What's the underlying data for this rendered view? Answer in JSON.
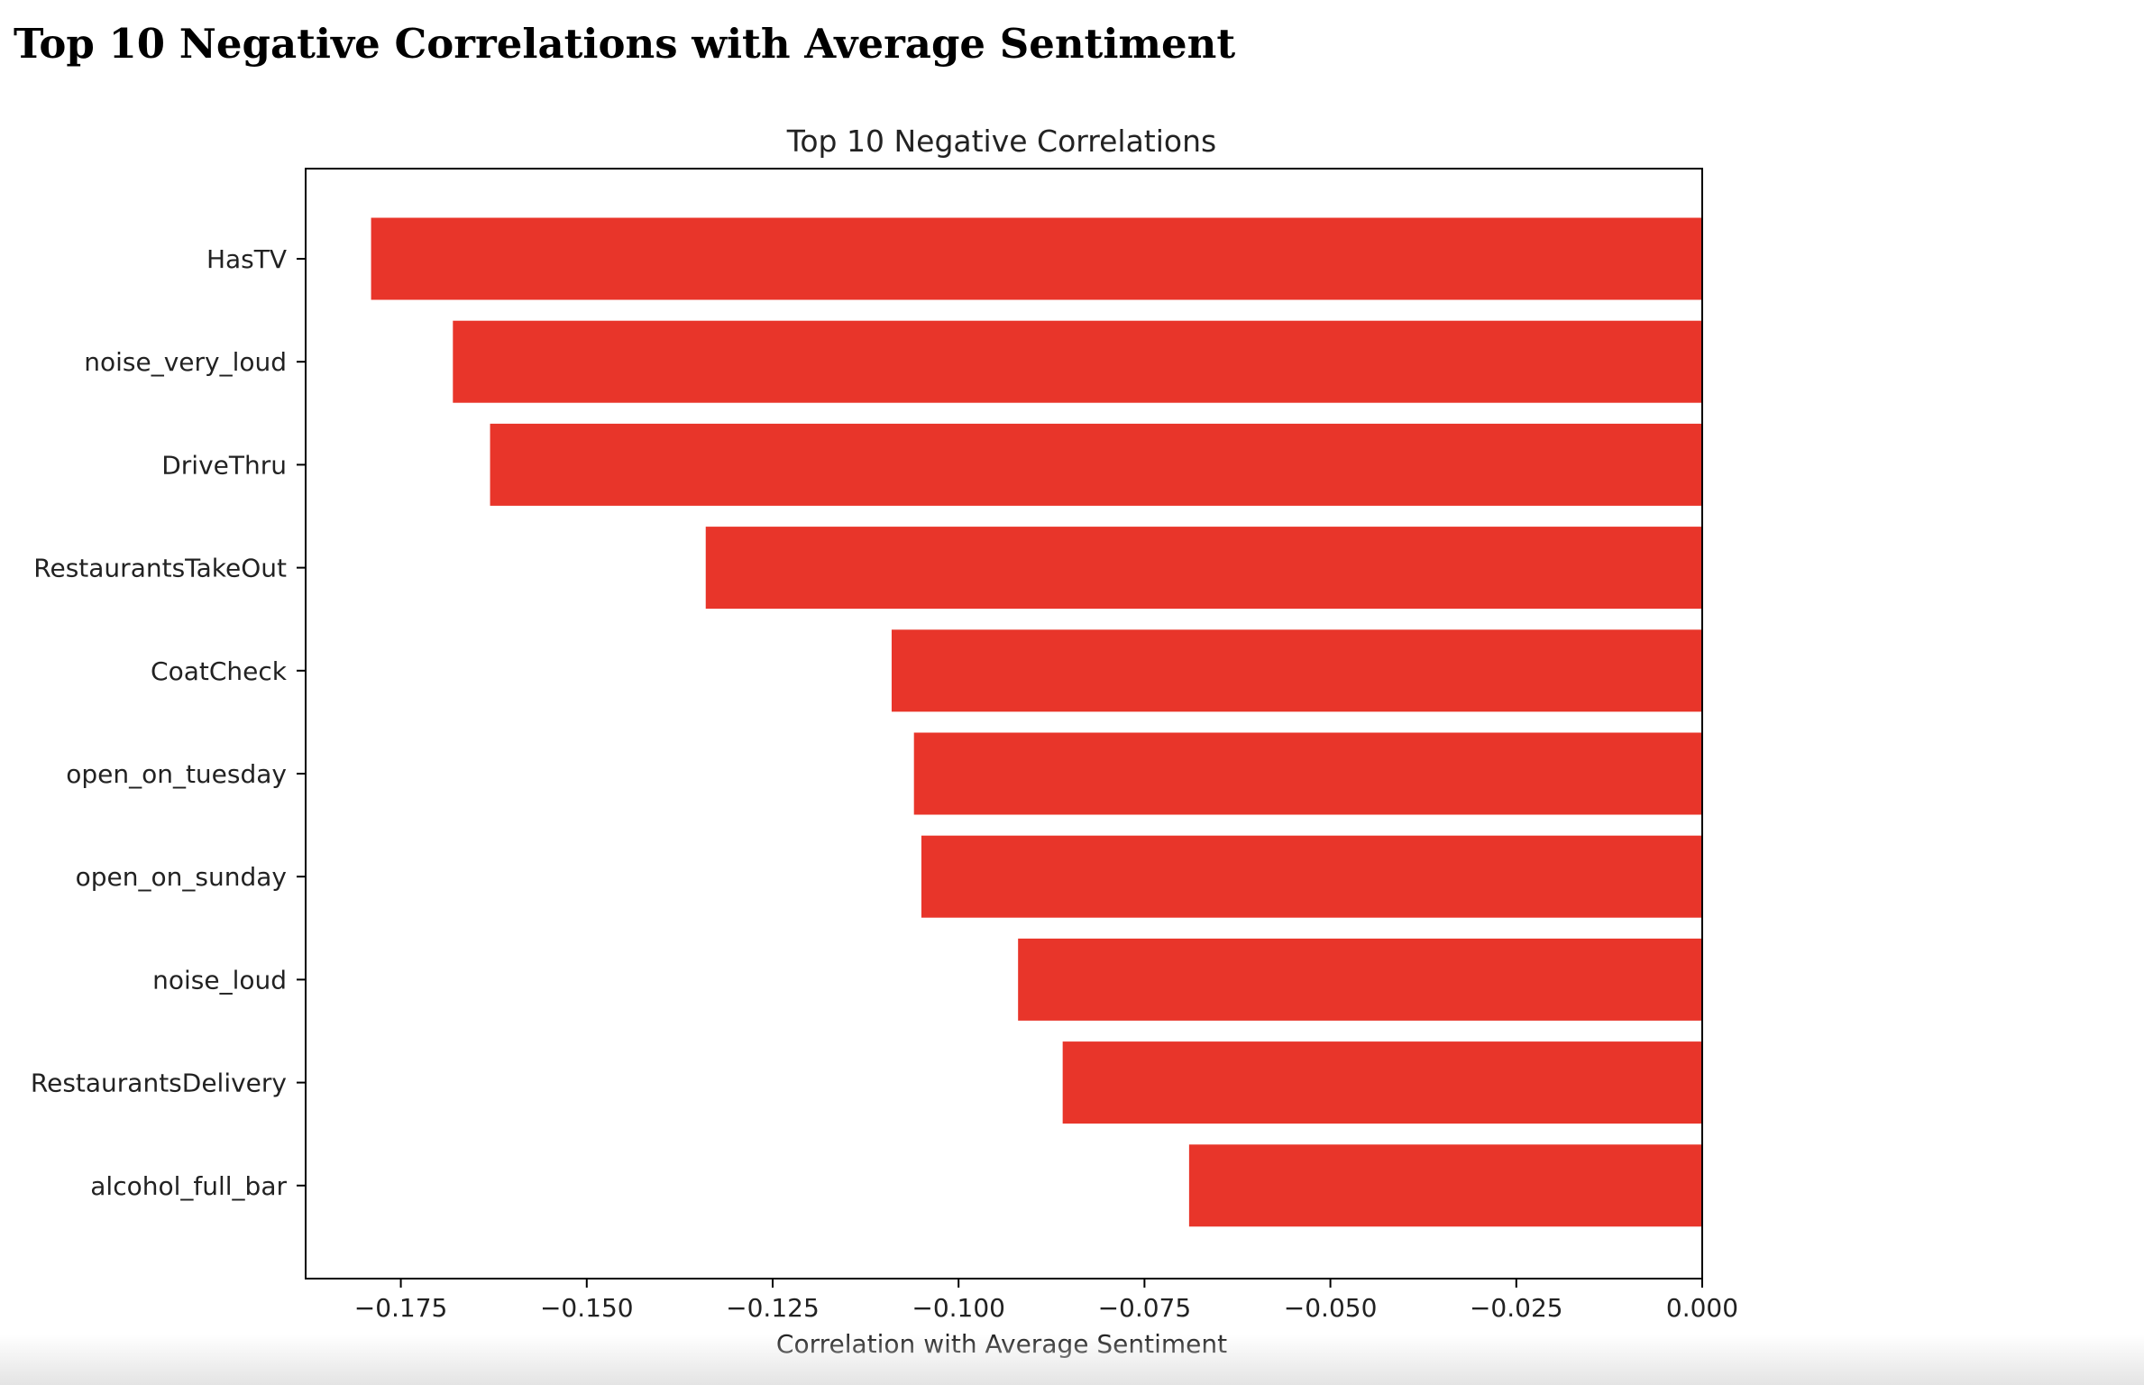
{
  "page": {
    "heading": "Top 10 Negative Correlations with Average Sentiment"
  },
  "chart_data": {
    "type": "bar",
    "orientation": "horizontal",
    "title": "Top 10 Negative Correlations",
    "xlabel": "Correlation with Average Sentiment",
    "ylabel": "",
    "categories": [
      "HasTV",
      "noise_very_loud",
      "DriveThru",
      "RestaurantsTakeOut",
      "CoatCheck",
      "open_on_tuesday",
      "open_on_sunday",
      "noise_loud",
      "RestaurantsDelivery",
      "alcohol_full_bar"
    ],
    "values": [
      -0.179,
      -0.168,
      -0.163,
      -0.134,
      -0.109,
      -0.106,
      -0.105,
      -0.092,
      -0.086,
      -0.069
    ],
    "xlim": [
      -0.1878,
      0.0
    ],
    "xticks": [
      -0.175,
      -0.15,
      -0.125,
      -0.1,
      -0.075,
      -0.05,
      -0.025,
      0.0
    ],
    "xtick_labels": [
      "−0.175",
      "−0.150",
      "−0.125",
      "−0.100",
      "−0.075",
      "−0.050",
      "−0.025",
      "0.000"
    ],
    "bar_color": "#e8352a",
    "grid": false,
    "legend": "none"
  }
}
